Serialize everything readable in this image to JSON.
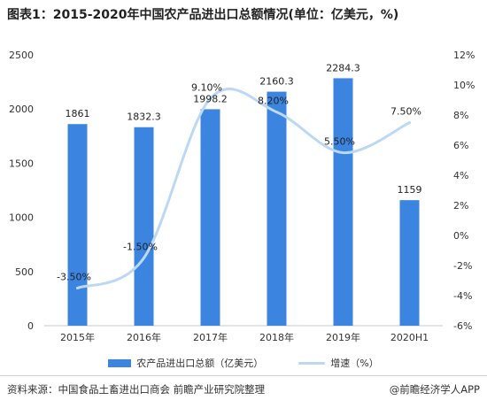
{
  "title": "图表1：2015-2020年中国农产品进出口总额情况(单位：亿美元，%)",
  "source": "资料来源：中国食品土畜进出口商会 前瞻产业研究院整理",
  "credit": "@前瞻经济学人APP",
  "colors": {
    "bar": "#3b85e0",
    "line": "#bcd8f5"
  },
  "chart_data": {
    "type": "bar",
    "categories": [
      "2015年",
      "2016年",
      "2017年",
      "2018年",
      "2019年",
      "2020H1"
    ],
    "series": [
      {
        "name": "农产品进出口总额（亿美元）",
        "type": "bar",
        "axis": "left",
        "values": [
          1861,
          1832.3,
          1998.2,
          2160.3,
          2284.3,
          1159
        ],
        "labels": [
          "1861",
          "1832.3",
          "1998.2",
          "2160.3",
          "2284.3",
          "1159"
        ]
      },
      {
        "name": "增速（%）",
        "type": "line",
        "axis": "right",
        "values": [
          -3.5,
          -1.5,
          9.1,
          8.2,
          5.5,
          7.5
        ],
        "labels": [
          "-3.50%",
          "-1.50%",
          "9.10%",
          "8.20%",
          "5.50%",
          "7.50%"
        ]
      }
    ],
    "left_axis": {
      "ylim": [
        0,
        2500
      ],
      "ticks": [
        "0",
        "500",
        "1000",
        "1500",
        "2000",
        "2500"
      ]
    },
    "right_axis": {
      "ylim": [
        -6,
        12
      ],
      "ticks": [
        "-6%",
        "-4%",
        "-2%",
        "0%",
        "2%",
        "4%",
        "6%",
        "8%",
        "10%",
        "12%"
      ]
    },
    "grid": false,
    "legend_position": "bottom"
  }
}
